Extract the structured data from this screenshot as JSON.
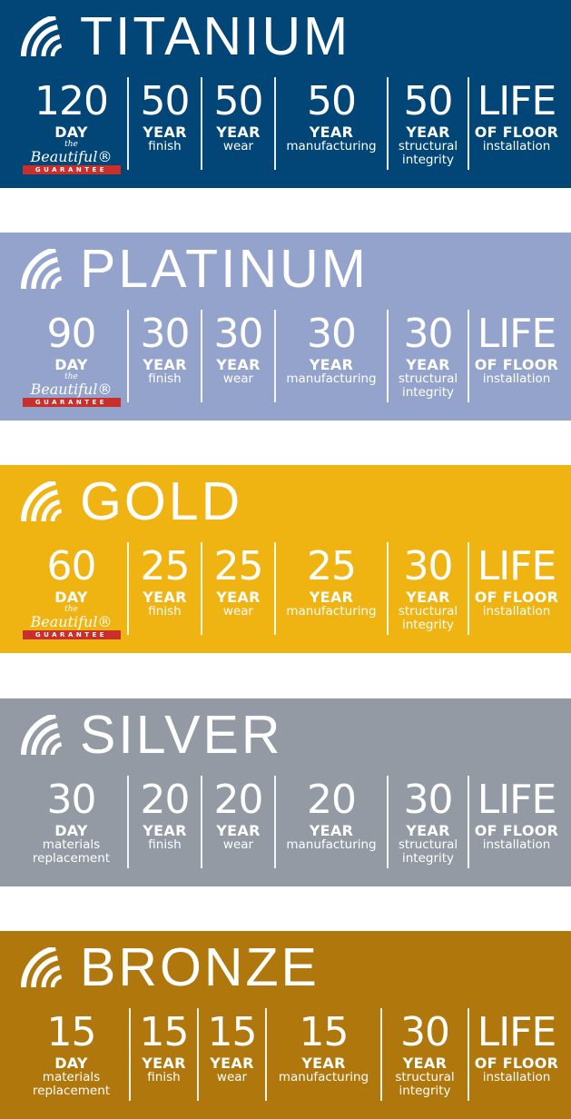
{
  "badge": {
    "the": "the",
    "beautiful": "Beautiful®",
    "guarantee": "GUARANTEE"
  },
  "tiers": [
    {
      "name": "TITANIUM",
      "color": "#014676",
      "columns": [
        {
          "num": "120",
          "unit": "DAY",
          "sub": [],
          "badge": true
        },
        {
          "num": "50",
          "unit": "YEAR",
          "sub": [
            "finish"
          ]
        },
        {
          "num": "50",
          "unit": "YEAR",
          "sub": [
            "wear"
          ]
        },
        {
          "num": "50",
          "unit": "YEAR",
          "sub": [
            "manufacturing"
          ]
        },
        {
          "num": "50",
          "unit": "YEAR",
          "sub": [
            "structural",
            "integrity"
          ]
        },
        {
          "num": "LIFE",
          "unit": "OF FLOOR",
          "sub": [
            "installation"
          ]
        }
      ]
    },
    {
      "name": "PLATINUM",
      "color": "#93A3CB",
      "columns": [
        {
          "num": "90",
          "unit": "DAY",
          "sub": [],
          "badge": true
        },
        {
          "num": "30",
          "unit": "YEAR",
          "sub": [
            "finish"
          ]
        },
        {
          "num": "30",
          "unit": "YEAR",
          "sub": [
            "wear"
          ]
        },
        {
          "num": "30",
          "unit": "YEAR",
          "sub": [
            "manufacturing"
          ]
        },
        {
          "num": "30",
          "unit": "YEAR",
          "sub": [
            "structural",
            "integrity"
          ]
        },
        {
          "num": "LIFE",
          "unit": "OF FLOOR",
          "sub": [
            "installation"
          ]
        }
      ]
    },
    {
      "name": "GOLD",
      "color": "#EFB312",
      "columns": [
        {
          "num": "60",
          "unit": "DAY",
          "sub": [],
          "badge": true
        },
        {
          "num": "25",
          "unit": "YEAR",
          "sub": [
            "finish"
          ]
        },
        {
          "num": "25",
          "unit": "YEAR",
          "sub": [
            "wear"
          ]
        },
        {
          "num": "25",
          "unit": "YEAR",
          "sub": [
            "manufacturing"
          ]
        },
        {
          "num": "30",
          "unit": "YEAR",
          "sub": [
            "structural",
            "integrity"
          ]
        },
        {
          "num": "LIFE",
          "unit": "OF FLOOR",
          "sub": [
            "installation"
          ]
        }
      ]
    },
    {
      "name": "SILVER",
      "color": "#939AA3",
      "columns": [
        {
          "num": "30",
          "unit": "DAY",
          "sub": [
            "materials",
            "replacement"
          ]
        },
        {
          "num": "20",
          "unit": "YEAR",
          "sub": [
            "finish"
          ]
        },
        {
          "num": "20",
          "unit": "YEAR",
          "sub": [
            "wear"
          ]
        },
        {
          "num": "20",
          "unit": "YEAR",
          "sub": [
            "manufacturing"
          ]
        },
        {
          "num": "30",
          "unit": "YEAR",
          "sub": [
            "structural",
            "integrity"
          ]
        },
        {
          "num": "LIFE",
          "unit": "OF FLOOR",
          "sub": [
            "installation"
          ]
        }
      ]
    },
    {
      "name": "BRONZE",
      "color": "#B0780C",
      "columns": [
        {
          "num": "15",
          "unit": "DAY",
          "sub": [
            "materials",
            "replacement"
          ]
        },
        {
          "num": "15",
          "unit": "YEAR",
          "sub": [
            "finish"
          ]
        },
        {
          "num": "15",
          "unit": "YEAR",
          "sub": [
            "wear"
          ]
        },
        {
          "num": "15",
          "unit": "YEAR",
          "sub": [
            "manufacturing"
          ]
        },
        {
          "num": "30",
          "unit": "YEAR",
          "sub": [
            "structural",
            "integrity"
          ]
        },
        {
          "num": "LIFE",
          "unit": "OF FLOOR",
          "sub": [
            "installation"
          ]
        }
      ]
    }
  ]
}
